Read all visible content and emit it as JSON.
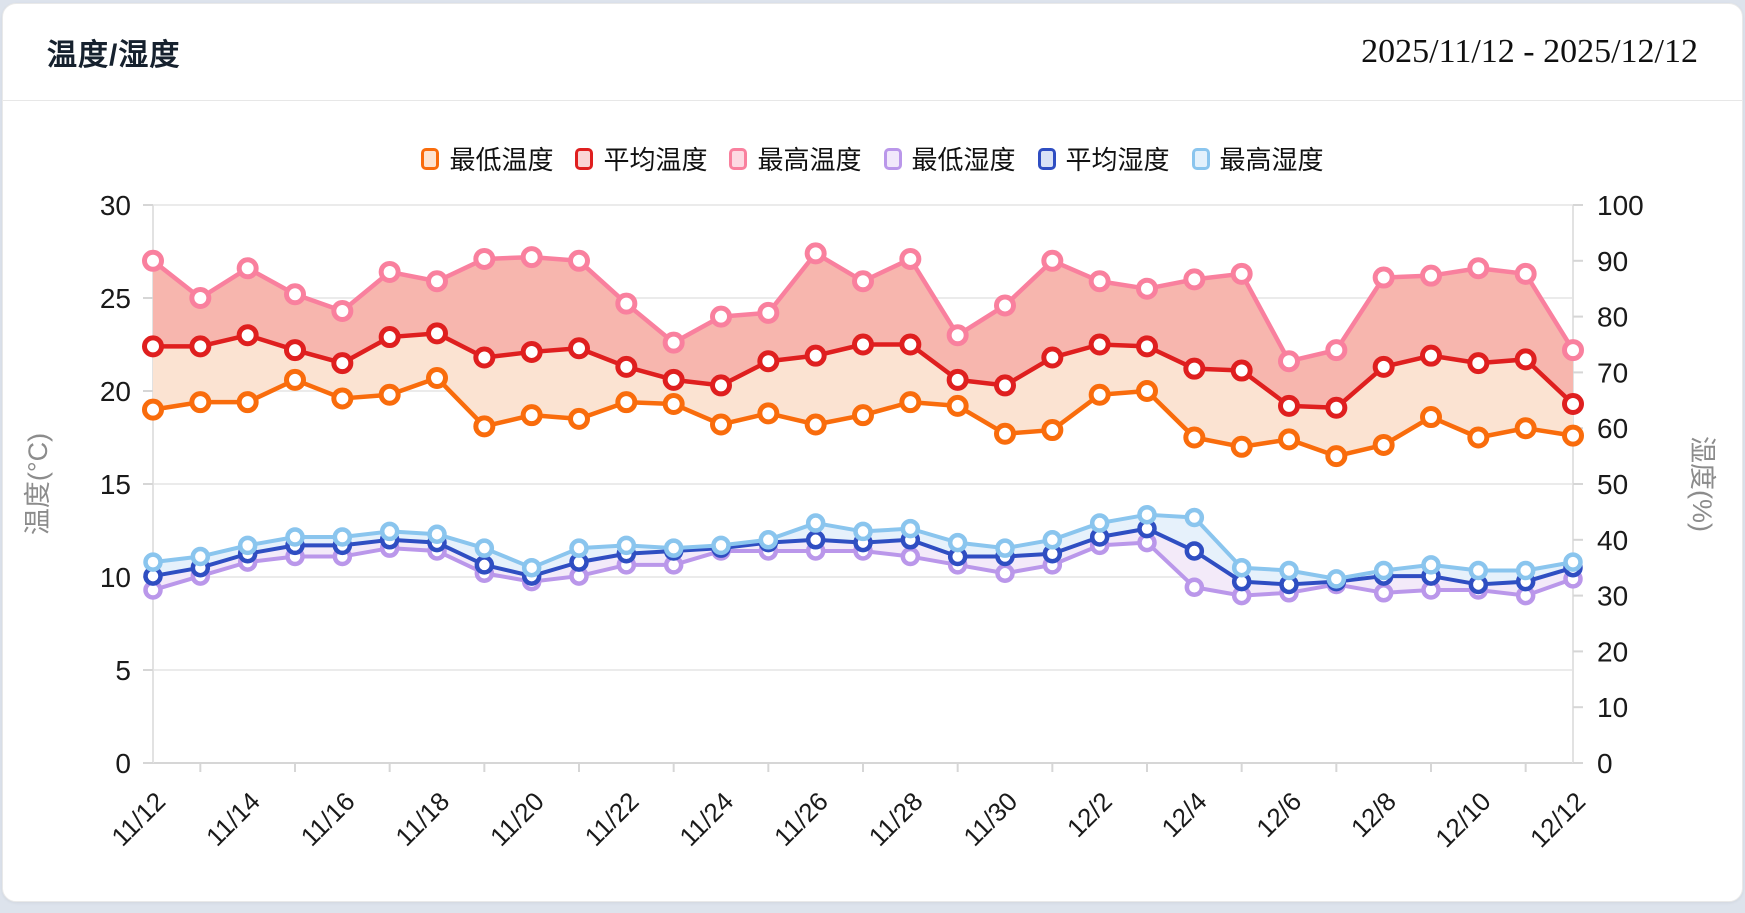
{
  "header": {
    "title": "温度/湿度",
    "date_range": "2025/11/12 - 2025/12/12"
  },
  "colors": {
    "page_bg": "#dde3ec",
    "card_bg": "#ffffff",
    "card_border": "#e9e9e9",
    "grid_line": "#ebebeb",
    "axis_line": "#d6d6d6",
    "frame_line": "#e2e2e2",
    "tick_text": "#1a1a1a",
    "axis_title_text": "#8c8c8c",
    "min_temp": "#f96c0c",
    "avg_temp": "#df1f1f",
    "max_temp": "#f9809e",
    "min_hum": "#ba97ea",
    "avg_hum": "#2f4ec2",
    "max_hum": "#8ac5ee",
    "band_temp_low": "#fbe3d2",
    "band_temp_high": "#f7b6ae",
    "band_hum_low": "#f3eaf9",
    "band_hum_high": "#e6f1fb"
  },
  "legend": [
    {
      "id": "min-temp",
      "label": "最低温度",
      "line": "#f96c0c",
      "fill": "#fde4d0"
    },
    {
      "id": "avg-temp",
      "label": "平均温度",
      "line": "#df1f1f",
      "fill": "#fad5d5"
    },
    {
      "id": "max-temp",
      "label": "最高温度",
      "line": "#f9809e",
      "fill": "#fdd9e2"
    },
    {
      "id": "min-hum",
      "label": "最低湿度",
      "line": "#ba97ea",
      "fill": "#f1e8fb"
    },
    {
      "id": "avg-hum",
      "label": "平均湿度",
      "line": "#2f4ec2",
      "fill": "#d9e2f6"
    },
    {
      "id": "max-hum",
      "label": "最高湿度",
      "line": "#8ac5ee",
      "fill": "#e3f1fc"
    }
  ],
  "chart_data": {
    "type": "line",
    "title": "温度/湿度",
    "categories": [
      "11/12",
      "11/13",
      "11/14",
      "11/15",
      "11/16",
      "11/17",
      "11/18",
      "11/19",
      "11/20",
      "11/21",
      "11/22",
      "11/23",
      "11/24",
      "11/25",
      "11/26",
      "11/27",
      "11/28",
      "11/29",
      "11/30",
      "12/1",
      "12/2",
      "12/3",
      "12/4",
      "12/5",
      "12/6",
      "12/7",
      "12/8",
      "12/9",
      "12/10",
      "12/11",
      "12/12"
    ],
    "x_tick_interval": 2,
    "grid": true,
    "legend_position": "top",
    "left_axis": {
      "title": "温度(°C)",
      "min": 0,
      "max": 30,
      "step": 5,
      "ticks": [
        0,
        5,
        10,
        15,
        20,
        25,
        30
      ]
    },
    "right_axis": {
      "title": "湿度(%)",
      "min": 0,
      "max": 100,
      "step": 10,
      "ticks": [
        0,
        10,
        20,
        30,
        40,
        50,
        60,
        70,
        80,
        90,
        100
      ]
    },
    "series": [
      {
        "id": "min-temp",
        "name": "最低温度",
        "axis": "temp",
        "color": "#f96c0c",
        "values": [
          19.0,
          19.4,
          19.4,
          20.6,
          19.6,
          19.8,
          20.7,
          18.1,
          18.7,
          18.5,
          19.4,
          19.3,
          18.2,
          18.8,
          18.2,
          18.7,
          19.4,
          19.2,
          17.7,
          17.9,
          19.8,
          20.0,
          17.5,
          17.0,
          17.4,
          16.5,
          17.1,
          18.6,
          17.5,
          18.0,
          17.6
        ]
      },
      {
        "id": "avg-temp",
        "name": "平均温度",
        "axis": "temp",
        "color": "#df1f1f",
        "values": [
          22.4,
          22.4,
          23.0,
          22.2,
          21.5,
          22.9,
          23.1,
          21.8,
          22.1,
          22.3,
          21.3,
          20.6,
          20.3,
          21.6,
          21.9,
          22.5,
          22.5,
          20.6,
          20.3,
          21.8,
          22.5,
          22.4,
          21.2,
          21.1,
          19.2,
          19.1,
          21.3,
          21.9,
          21.5,
          21.7,
          19.3
        ]
      },
      {
        "id": "max-temp",
        "name": "最高温度",
        "axis": "temp",
        "color": "#f9809e",
        "values": [
          27.0,
          25.0,
          26.6,
          25.2,
          24.3,
          26.4,
          25.9,
          27.1,
          27.2,
          27.0,
          24.7,
          22.6,
          24.0,
          24.2,
          27.4,
          25.9,
          27.1,
          23.0,
          24.6,
          27.0,
          25.9,
          25.5,
          26.0,
          26.3,
          21.6,
          22.2,
          26.1,
          26.2,
          26.6,
          26.3,
          22.2
        ]
      },
      {
        "id": "min-hum",
        "name": "最低湿度",
        "axis": "hum",
        "color": "#ba97ea",
        "values": [
          31,
          33.5,
          36,
          37,
          37,
          38.5,
          38,
          34,
          32.5,
          33.5,
          35.5,
          35.5,
          38,
          38,
          38,
          38,
          37,
          35.5,
          34,
          35.5,
          39,
          39.5,
          31.5,
          30,
          30.5,
          32,
          30.5,
          31,
          31,
          30,
          33
        ]
      },
      {
        "id": "avg-hum",
        "name": "平均湿度",
        "axis": "hum",
        "color": "#2f4ec2",
        "values": [
          33.5,
          35,
          37.5,
          39,
          39,
          40,
          39.5,
          35.5,
          33.5,
          36,
          37.5,
          38,
          38.5,
          39.5,
          40,
          39.5,
          40,
          37,
          37,
          37.5,
          40.5,
          42,
          38,
          32.5,
          32,
          32.5,
          33.5,
          33.5,
          32,
          32.5,
          35
        ]
      },
      {
        "id": "max-hum",
        "name": "最高湿度",
        "axis": "hum",
        "color": "#8ac5ee",
        "values": [
          36,
          37,
          39,
          40.5,
          40.5,
          41.5,
          41,
          38.5,
          35,
          38.5,
          39,
          38.5,
          39,
          40,
          43,
          41.5,
          42,
          39.5,
          38.5,
          40,
          43,
          44.5,
          44,
          35,
          34.5,
          33,
          34.5,
          35.5,
          34.5,
          34.5,
          36
        ]
      }
    ],
    "bands": [
      {
        "upper": "avg-temp",
        "lower": "min-temp",
        "color": "#fbe3d2"
      },
      {
        "upper": "max-temp",
        "lower": "avg-temp",
        "color": "#f7b6ae"
      },
      {
        "upper": "avg-hum",
        "lower": "min-hum",
        "color": "#f3eaf9"
      },
      {
        "upper": "max-hum",
        "lower": "avg-hum",
        "color": "#e6f1fb"
      }
    ]
  }
}
